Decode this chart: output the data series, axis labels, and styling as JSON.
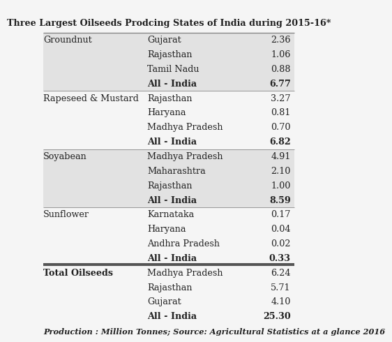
{
  "title": "Three Largest Oilseeds Prodcing States of India during 2015-16*",
  "footer": "Production : Million Tonnes; Source: Agricultural Statistics at a glance 2016",
  "sections": [
    {
      "crop": "Groundnut",
      "crop_bold": false,
      "rows": [
        {
          "state": "Gujarat",
          "value": "2.36",
          "bold": false
        },
        {
          "state": "Rajasthan",
          "value": "1.06",
          "bold": false
        },
        {
          "state": "Tamil Nadu",
          "value": "0.88",
          "bold": false
        },
        {
          "state": "All - India",
          "value": "6.77",
          "bold": true
        }
      ],
      "bg_color": "#e2e2e2"
    },
    {
      "crop": "Rapeseed & Mustard",
      "crop_bold": false,
      "rows": [
        {
          "state": "Rajasthan",
          "value": "3.27",
          "bold": false
        },
        {
          "state": "Haryana",
          "value": "0.81",
          "bold": false
        },
        {
          "state": "Madhya Pradesh",
          "value": "0.70",
          "bold": false
        },
        {
          "state": "All - India",
          "value": "6.82",
          "bold": true
        }
      ],
      "bg_color": "#f5f5f5"
    },
    {
      "crop": "Soyabean",
      "crop_bold": false,
      "rows": [
        {
          "state": "Madhya Pradesh",
          "value": "4.91",
          "bold": false
        },
        {
          "state": "Maharashtra",
          "value": "2.10",
          "bold": false
        },
        {
          "state": "Rajasthan",
          "value": "1.00",
          "bold": false
        },
        {
          "state": "All - India",
          "value": "8.59",
          "bold": true
        }
      ],
      "bg_color": "#e2e2e2"
    },
    {
      "crop": "Sunflower",
      "crop_bold": false,
      "rows": [
        {
          "state": "Karnataka",
          "value": "0.17",
          "bold": false
        },
        {
          "state": "Haryana",
          "value": "0.04",
          "bold": false
        },
        {
          "state": "Andhra Pradesh",
          "value": "0.02",
          "bold": false
        },
        {
          "state": "All - India",
          "value": "0.33",
          "bold": true
        }
      ],
      "bg_color": "#f5f5f5"
    },
    {
      "crop": "Total Oilseeds",
      "crop_bold": true,
      "rows": [
        {
          "state": "Madhya Pradesh",
          "value": "6.24",
          "bold": false
        },
        {
          "state": "Rajasthan",
          "value": "5.71",
          "bold": false
        },
        {
          "state": "Gujarat",
          "value": "4.10",
          "bold": false
        },
        {
          "state": "All - India",
          "value": "25.30",
          "bold": true
        }
      ],
      "bg_color": "#f5f5f5"
    }
  ],
  "title_fontsize": 9.2,
  "body_fontsize": 9.2,
  "footer_fontsize": 8.2,
  "bg_color": "#f5f5f5",
  "separator_color": "#888888",
  "thick_sep_color": "#555555",
  "text_color": "#222222"
}
